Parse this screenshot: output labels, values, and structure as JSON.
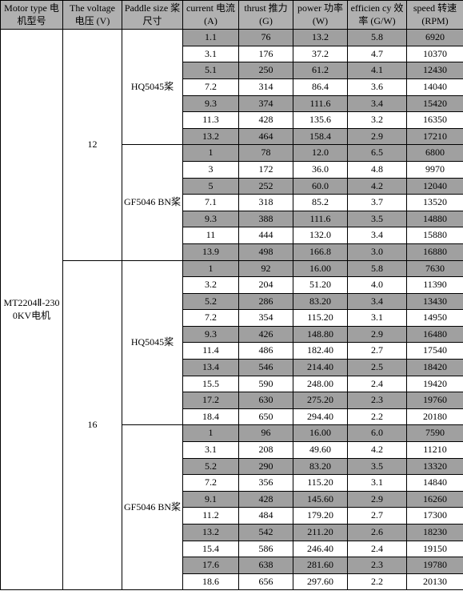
{
  "header_bg": "#b0b0b0",
  "row_dark_bg": "#a0a0a0",
  "row_light_bg": "#ffffff",
  "border_color": "#000000",
  "font_size_pt": 12,
  "headers": {
    "motor": "Motor type\n电机型号",
    "voltage": "The voltage\n电压\n(V)",
    "paddle": "Paddle size\n桨尺寸",
    "current": "current\n电流\n(A)",
    "thrust": "thrust\n推力\n(G)",
    "power": "power\n功率\n(W)",
    "eff": "efficien\ncy\n效率\n(G/W)",
    "speed": "speed\n转速\n(RPM)"
  },
  "motor_label": "MT2204Ⅱ-2300KV电机",
  "voltage_labels": {
    "v12": "12",
    "v16": "16"
  },
  "paddle_labels": {
    "hq5045": "HQ5045桨",
    "gf5046bn": "GF5046 BN桨"
  },
  "groups": [
    {
      "voltage_key": "v12",
      "paddle_key": "hq5045",
      "rows": [
        {
          "c": "1.1",
          "t": "76",
          "p": "13.2",
          "e": "5.8",
          "s": "6920",
          "shade": "dark"
        },
        {
          "c": "3.1",
          "t": "176",
          "p": "37.2",
          "e": "4.7",
          "s": "10370",
          "shade": "light"
        },
        {
          "c": "5.1",
          "t": "250",
          "p": "61.2",
          "e": "4.1",
          "s": "12430",
          "shade": "dark"
        },
        {
          "c": "7.2",
          "t": "314",
          "p": "86.4",
          "e": "3.6",
          "s": "14040",
          "shade": "light"
        },
        {
          "c": "9.3",
          "t": "374",
          "p": "111.6",
          "e": "3.4",
          "s": "15420",
          "shade": "dark"
        },
        {
          "c": "11.3",
          "t": "428",
          "p": "135.6",
          "e": "3.2",
          "s": "16350",
          "shade": "light"
        },
        {
          "c": "13.2",
          "t": "464",
          "p": "158.4",
          "e": "2.9",
          "s": "17210",
          "shade": "dark"
        }
      ]
    },
    {
      "voltage_key": "v12",
      "paddle_key": "gf5046bn",
      "rows": [
        {
          "c": "1",
          "t": "78",
          "p": "12.0",
          "e": "6.5",
          "s": "6800",
          "shade": "dark"
        },
        {
          "c": "3",
          "t": "172",
          "p": "36.0",
          "e": "4.8",
          "s": "9970",
          "shade": "light"
        },
        {
          "c": "5",
          "t": "252",
          "p": "60.0",
          "e": "4.2",
          "s": "12040",
          "shade": "dark"
        },
        {
          "c": "7.1",
          "t": "318",
          "p": "85.2",
          "e": "3.7",
          "s": "13520",
          "shade": "light"
        },
        {
          "c": "9.3",
          "t": "388",
          "p": "111.6",
          "e": "3.5",
          "s": "14880",
          "shade": "dark"
        },
        {
          "c": "11",
          "t": "444",
          "p": "132.0",
          "e": "3.4",
          "s": "15880",
          "shade": "light"
        },
        {
          "c": "13.9",
          "t": "498",
          "p": "166.8",
          "e": "3.0",
          "s": "16880",
          "shade": "dark"
        }
      ]
    },
    {
      "voltage_key": "v16",
      "paddle_key": "hq5045",
      "rows": [
        {
          "c": "1",
          "t": "92",
          "p": "16.00",
          "e": "5.8",
          "s": "7630",
          "shade": "dark"
        },
        {
          "c": "3.2",
          "t": "204",
          "p": "51.20",
          "e": "4.0",
          "s": "11390",
          "shade": "light"
        },
        {
          "c": "5.2",
          "t": "286",
          "p": "83.20",
          "e": "3.4",
          "s": "13430",
          "shade": "dark"
        },
        {
          "c": "7.2",
          "t": "354",
          "p": "115.20",
          "e": "3.1",
          "s": "14950",
          "shade": "light"
        },
        {
          "c": "9.3",
          "t": "426",
          "p": "148.80",
          "e": "2.9",
          "s": "16480",
          "shade": "dark"
        },
        {
          "c": "11.4",
          "t": "486",
          "p": "182.40",
          "e": "2.7",
          "s": "17540",
          "shade": "light"
        },
        {
          "c": "13.4",
          "t": "546",
          "p": "214.40",
          "e": "2.5",
          "s": "18420",
          "shade": "dark"
        },
        {
          "c": "15.5",
          "t": "590",
          "p": "248.00",
          "e": "2.4",
          "s": "19420",
          "shade": "light"
        },
        {
          "c": "17.2",
          "t": "630",
          "p": "275.20",
          "e": "2.3",
          "s": "19760",
          "shade": "dark"
        },
        {
          "c": "18.4",
          "t": "650",
          "p": "294.40",
          "e": "2.2",
          "s": "20180",
          "shade": "light"
        }
      ]
    },
    {
      "voltage_key": "v16",
      "paddle_key": "gf5046bn",
      "rows": [
        {
          "c": "1",
          "t": "96",
          "p": "16.00",
          "e": "6.0",
          "s": "7590",
          "shade": "dark"
        },
        {
          "c": "3.1",
          "t": "208",
          "p": "49.60",
          "e": "4.2",
          "s": "11210",
          "shade": "light"
        },
        {
          "c": "5.2",
          "t": "290",
          "p": "83.20",
          "e": "3.5",
          "s": "13320",
          "shade": "dark"
        },
        {
          "c": "7.2",
          "t": "356",
          "p": "115.20",
          "e": "3.1",
          "s": "14840",
          "shade": "light"
        },
        {
          "c": "9.1",
          "t": "428",
          "p": "145.60",
          "e": "2.9",
          "s": "16260",
          "shade": "dark"
        },
        {
          "c": "11.2",
          "t": "484",
          "p": "179.20",
          "e": "2.7",
          "s": "17300",
          "shade": "light"
        },
        {
          "c": "13.2",
          "t": "542",
          "p": "211.20",
          "e": "2.6",
          "s": "18230",
          "shade": "dark"
        },
        {
          "c": "15.4",
          "t": "586",
          "p": "246.40",
          "e": "2.4",
          "s": "19150",
          "shade": "light"
        },
        {
          "c": "17.6",
          "t": "638",
          "p": "281.60",
          "e": "2.3",
          "s": "19780",
          "shade": "dark"
        },
        {
          "c": "18.6",
          "t": "656",
          "p": "297.60",
          "e": "2.2",
          "s": "20130",
          "shade": "light"
        }
      ]
    }
  ]
}
